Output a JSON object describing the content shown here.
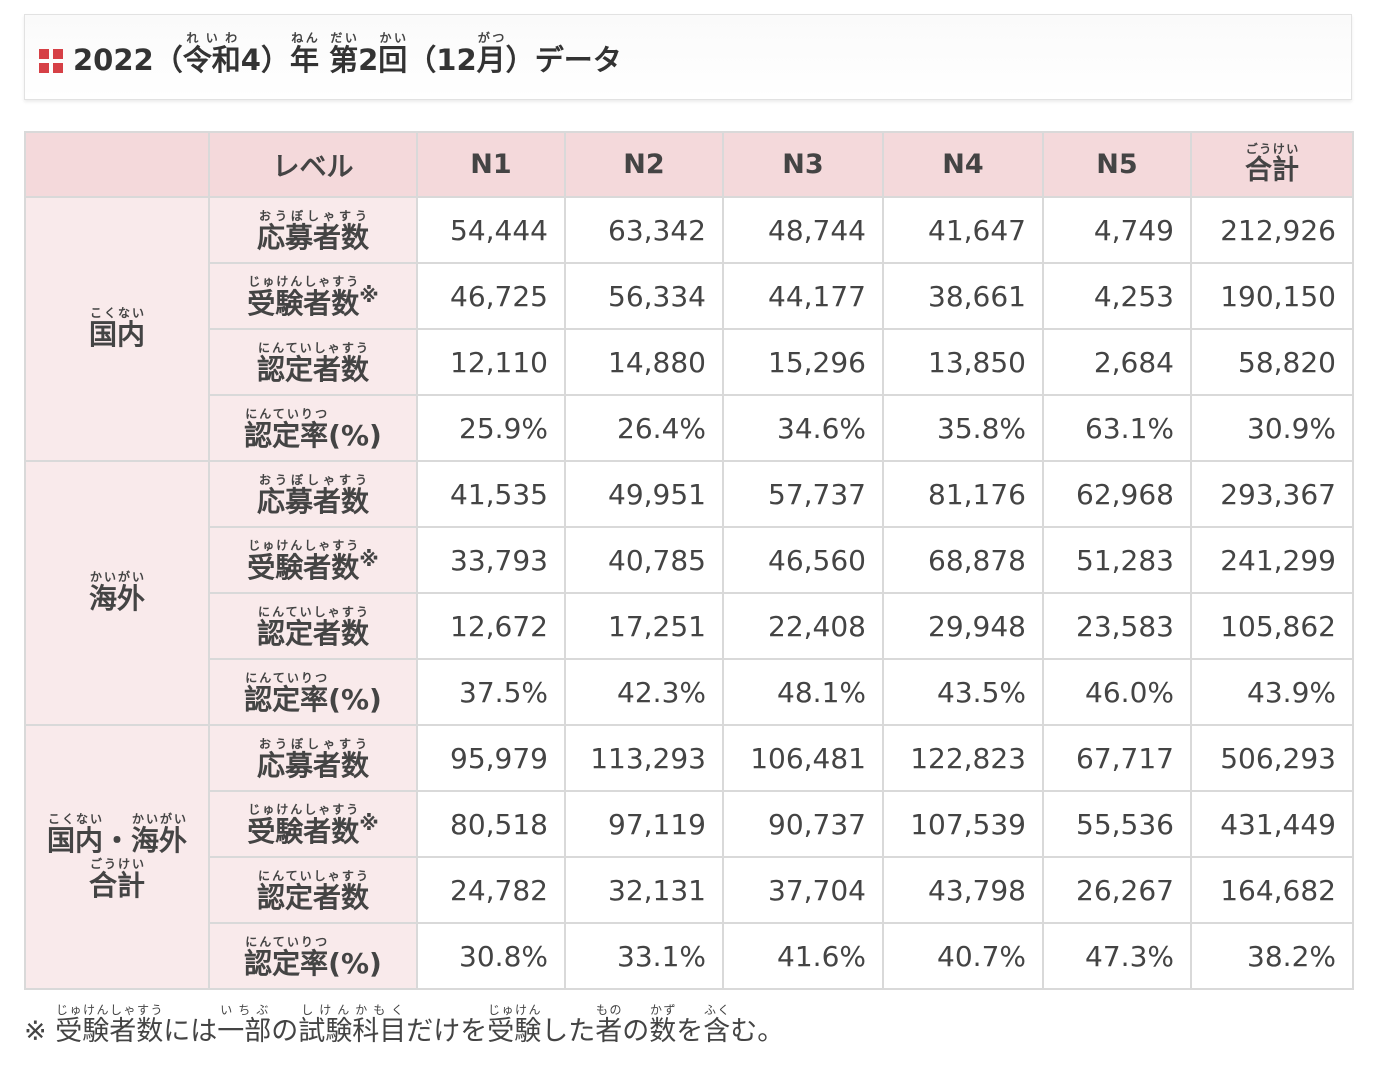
{
  "title": {
    "year": "2022",
    "era_open": "（",
    "era_kanji": "令和",
    "era_reading": "れいわ",
    "era_num": "4",
    "era_close": "）",
    "nen": "年",
    "nen_reading": "ねん",
    "dai": "第",
    "dai_reading": "だい",
    "round_num": "2",
    "kai": "回",
    "kai_reading": "かい",
    "month_open": "（12",
    "gatsu": "月",
    "gatsu_reading": "がつ",
    "month_close": "）",
    "data_word": "データ",
    "accent_color": "#d64046"
  },
  "table": {
    "header_level": "レベル",
    "levels": [
      "N1",
      "N2",
      "N3",
      "N4",
      "N5"
    ],
    "total_kanji": "合計",
    "total_reading": "ごうけい",
    "metrics": [
      {
        "kanji": "応募者数",
        "reading": "おうぼしゃすう",
        "mark": ""
      },
      {
        "kanji": "受験者数",
        "reading": "じゅけんしゃすう",
        "mark": "※"
      },
      {
        "kanji": "認定者数",
        "reading": "にんていしゃすう",
        "mark": ""
      },
      {
        "kanji": "認定率",
        "reading": "にんていりつ",
        "suffix": "(%)",
        "mark": ""
      }
    ],
    "groups": [
      {
        "line1": [
          {
            "kanji": "国内",
            "reading": "こくない"
          }
        ],
        "line2": [],
        "rows": [
          [
            "54,444",
            "63,342",
            "48,744",
            "41,647",
            "4,749",
            "212,926"
          ],
          [
            "46,725",
            "56,334",
            "44,177",
            "38,661",
            "4,253",
            "190,150"
          ],
          [
            "12,110",
            "14,880",
            "15,296",
            "13,850",
            "2,684",
            "58,820"
          ],
          [
            "25.9%",
            "26.4%",
            "34.6%",
            "35.8%",
            "63.1%",
            "30.9%"
          ]
        ]
      },
      {
        "line1": [
          {
            "kanji": "海外",
            "reading": "かいがい"
          }
        ],
        "line2": [],
        "rows": [
          [
            "41,535",
            "49,951",
            "57,737",
            "81,176",
            "62,968",
            "293,367"
          ],
          [
            "33,793",
            "40,785",
            "46,560",
            "68,878",
            "51,283",
            "241,299"
          ],
          [
            "12,672",
            "17,251",
            "22,408",
            "29,948",
            "23,583",
            "105,862"
          ],
          [
            "37.5%",
            "42.3%",
            "48.1%",
            "43.5%",
            "46.0%",
            "43.9%"
          ]
        ]
      },
      {
        "line1": [
          {
            "kanji": "国内",
            "reading": "こくない"
          },
          {
            "plain": "・"
          },
          {
            "kanji": "海外",
            "reading": "かいがい"
          }
        ],
        "line2": [
          {
            "kanji": "合計",
            "reading": "ごうけい"
          }
        ],
        "rows": [
          [
            "95,979",
            "113,293",
            "106,481",
            "122,823",
            "67,717",
            "506,293"
          ],
          [
            "80,518",
            "97,119",
            "90,737",
            "107,539",
            "55,536",
            "431,449"
          ],
          [
            "24,782",
            "32,131",
            "37,704",
            "43,798",
            "26,267",
            "164,682"
          ],
          [
            "30.8%",
            "33.1%",
            "41.6%",
            "40.7%",
            "47.3%",
            "38.2%"
          ]
        ]
      }
    ]
  },
  "footnote": [
    {
      "plain": "※ "
    },
    {
      "kanji": "受験者数",
      "reading": "じゅけんしゃすう"
    },
    {
      "plain": "には"
    },
    {
      "kanji": "一部",
      "reading": "いちぶ"
    },
    {
      "plain": "の"
    },
    {
      "kanji": "試験科目",
      "reading": "しけんかもく"
    },
    {
      "plain": "だけを"
    },
    {
      "kanji": "受験",
      "reading": "じゅけん"
    },
    {
      "plain": "した"
    },
    {
      "kanji": "者",
      "reading": "もの"
    },
    {
      "plain": "の"
    },
    {
      "kanji": "数",
      "reading": "かず"
    },
    {
      "plain": "を"
    },
    {
      "kanji": "含",
      "reading": "ふく"
    },
    {
      "plain": "む。"
    }
  ]
}
